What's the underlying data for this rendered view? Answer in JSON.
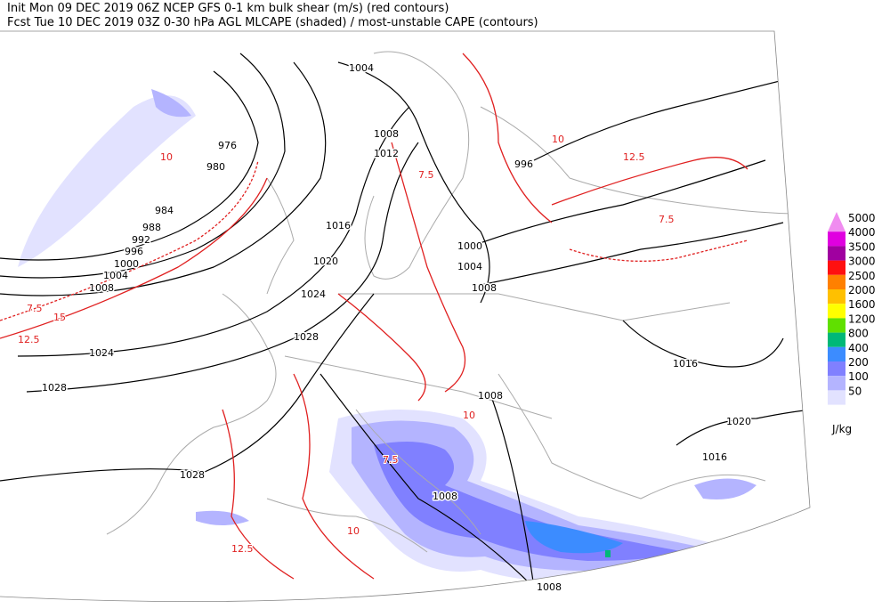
{
  "header": {
    "line1": "Init  Mon 09 DEC 2019 06Z  NCEP GFS 0-1 km bulk shear (m/s) (red contours)",
    "line2": "Fcst Tue 10 DEC 2019 03Z  0-30 hPa AGL MLCAPE (shaded) / most-unstable CAPE (contours)"
  },
  "legend": {
    "unit": "J/kg",
    "items": [
      {
        "label": 5000,
        "color": "#f08cf0"
      },
      {
        "label": 4000,
        "color": "#e000e0"
      },
      {
        "label": 3500,
        "color": "#a000a0"
      },
      {
        "label": 3000,
        "color": "#ff1010"
      },
      {
        "label": 2500,
        "color": "#ff8000"
      },
      {
        "label": 2000,
        "color": "#ffc000"
      },
      {
        "label": 1600,
        "color": "#ffff00"
      },
      {
        "label": 1200,
        "color": "#60e000"
      },
      {
        "label": 800,
        "color": "#00b878"
      },
      {
        "label": 400,
        "color": "#3c8cff"
      },
      {
        "label": 200,
        "color": "#8080ff"
      },
      {
        "label": 100,
        "color": "#b4b4ff"
      },
      {
        "label": 50,
        "color": "#e2e2ff"
      }
    ]
  },
  "isobar_labels": [
    "1004",
    "976",
    "980",
    "1008",
    "1012",
    "984",
    "988",
    "992",
    "996",
    "1000",
    "1004",
    "1008",
    "1016",
    "1020",
    "1024",
    "1024",
    "1028",
    "1028",
    "1028",
    "1008",
    "1008",
    "1008",
    "1016",
    "1020",
    "1016",
    "996",
    "1000",
    "1004",
    "1008"
  ],
  "shear_labels": [
    "7.5",
    "10",
    "12.5",
    "15",
    "7.5",
    "10",
    "12.5",
    "7.5",
    "10",
    "7.5",
    "12.5",
    "10"
  ]
}
